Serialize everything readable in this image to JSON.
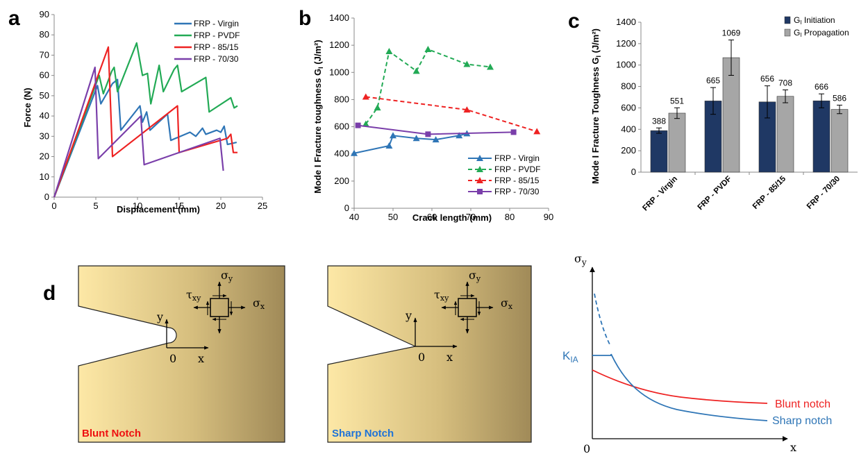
{
  "panel_letters": [
    "a",
    "b",
    "c",
    "d"
  ],
  "chart_data": [
    {
      "type": "line",
      "panel": "a",
      "xlabel": "Displacement (mm)",
      "ylabel": "Force (N)",
      "xlim": [
        0,
        25
      ],
      "ylim": [
        0,
        90
      ],
      "xticks": [
        "0",
        "5",
        "10",
        "15",
        "20",
        "25"
      ],
      "yticks": [
        "0",
        "10",
        "20",
        "30",
        "40",
        "50",
        "60",
        "70",
        "80",
        "90"
      ],
      "legend_position": "top-right",
      "series": [
        {
          "name": "FRP - Virgin",
          "color": "#2E75B6",
          "points": [
            [
              0,
              0
            ],
            [
              5.2,
              55
            ],
            [
              5.6,
              46
            ],
            [
              7,
              56
            ],
            [
              7.6,
              58
            ],
            [
              8,
              33
            ],
            [
              10.3,
              45
            ],
            [
              10.6,
              37
            ],
            [
              11.1,
              42
            ],
            [
              11.5,
              33
            ],
            [
              13.6,
              41
            ],
            [
              14,
              28
            ],
            [
              16.3,
              32
            ],
            [
              17,
              30
            ],
            [
              17.8,
              34
            ],
            [
              18.2,
              31
            ],
            [
              19.5,
              33
            ],
            [
              20,
              32
            ],
            [
              20.4,
              35
            ],
            [
              20.8,
              26
            ],
            [
              21.9,
              27
            ]
          ]
        },
        {
          "name": "FRP - PVDF",
          "color": "#22AA55",
          "points": [
            [
              0,
              0
            ],
            [
              5.4,
              60
            ],
            [
              5.9,
              51
            ],
            [
              6.9,
              62
            ],
            [
              7.2,
              64
            ],
            [
              7.6,
              52
            ],
            [
              9.9,
              76
            ],
            [
              10.6,
              60
            ],
            [
              11.2,
              61
            ],
            [
              11.6,
              46
            ],
            [
              12.6,
              65
            ],
            [
              13.1,
              52
            ],
            [
              14.4,
              63
            ],
            [
              14.8,
              65
            ],
            [
              15.3,
              52
            ],
            [
              18.2,
              59
            ],
            [
              18.6,
              42
            ],
            [
              21.2,
              49
            ],
            [
              21.6,
              44
            ],
            [
              22,
              45
            ]
          ]
        },
        {
          "name": "FRP - 85/15",
          "color": "#EE2222",
          "points": [
            [
              0,
              0
            ],
            [
              6.5,
              74
            ],
            [
              7,
              20
            ],
            [
              14.8,
              45
            ],
            [
              15,
              22
            ],
            [
              20.8,
              29
            ],
            [
              21.2,
              31
            ],
            [
              21.5,
              22
            ],
            [
              22,
              22
            ]
          ]
        },
        {
          "name": "FRP - 70/30",
          "color": "#7A3FAA",
          "points": [
            [
              0,
              0
            ],
            [
              4.9,
              64
            ],
            [
              5.3,
              19
            ],
            [
              10.4,
              40
            ],
            [
              10.8,
              16
            ],
            [
              19.9,
              29
            ],
            [
              20.3,
              13
            ]
          ]
        }
      ]
    },
    {
      "type": "line",
      "panel": "b",
      "xlabel": "Crack length (mm)",
      "ylabel": "Mode I Fracture toughness GI (J/m²)",
      "ylabel_main": "Mode I Fracture toughness G",
      "ylabel_sub": "I",
      "ylabel_unit": " (J/m²)",
      "xlim": [
        40,
        90
      ],
      "ylim": [
        0,
        1400
      ],
      "xticks": [
        "40",
        "50",
        "60",
        "70",
        "80",
        "90"
      ],
      "yticks": [
        "0",
        "200",
        "400",
        "600",
        "800",
        "1000",
        "1200",
        "1400"
      ],
      "legend_position": "bottom-right",
      "series": [
        {
          "name": "FRP - Virgin",
          "color": "#2E75B6",
          "dash": "",
          "marker": "triangle",
          "points": [
            [
              40,
              405
            ],
            [
              49,
              460
            ],
            [
              50,
              535
            ],
            [
              56,
              515
            ],
            [
              61,
              505
            ],
            [
              67,
              535
            ],
            [
              69,
              550
            ]
          ]
        },
        {
          "name": "FRP - PVDF",
          "color": "#22AA55",
          "dash": "6,4",
          "marker": "triangle",
          "points": [
            [
              43,
              620
            ],
            [
              46,
              740
            ],
            [
              49,
              1155
            ],
            [
              56,
              1010
            ],
            [
              59,
              1170
            ],
            [
              69,
              1060
            ],
            [
              75,
              1040
            ]
          ]
        },
        {
          "name": "FRP - 85/15",
          "color": "#EE2222",
          "dash": "6,4",
          "marker": "triangle",
          "points": [
            [
              43,
              820
            ],
            [
              69,
              725
            ],
            [
              87,
              565
            ]
          ]
        },
        {
          "name": "FRP - 70/30",
          "color": "#7A3FAA",
          "dash": "",
          "marker": "square",
          "points": [
            [
              41,
              610
            ],
            [
              59,
              545
            ],
            [
              81,
              560
            ]
          ]
        }
      ]
    },
    {
      "type": "bar",
      "panel": "c",
      "ylabel": "Mode I Fracture Toughness GI (J/m²)",
      "ylabel_main": "Mode I Fracture Toughness G",
      "ylabel_sub": "I",
      "ylabel_unit": " (J/m²)",
      "ylim": [
        0,
        1400
      ],
      "yticks": [
        "0",
        "200",
        "400",
        "600",
        "800",
        "1000",
        "1200",
        "1400"
      ],
      "categories": [
        "FRP - Virgin",
        "FRP - PVDF",
        "FRP - 85/15",
        "FRP - 70/30"
      ],
      "legend_position": "top-right",
      "series": [
        {
          "legend_main": "G",
          "legend_sub": "I",
          "legend_rest": " Initiation",
          "color": "#1F3864",
          "values": [
            388,
            665,
            656,
            666
          ],
          "labels": [
            "388",
            "665",
            "656",
            "666"
          ],
          "errors": [
            25,
            125,
            150,
            65
          ]
        },
        {
          "legend_main": "G",
          "legend_sub": "I",
          "legend_rest": " Propagation",
          "color": "#A6A6A6",
          "values": [
            551,
            1069,
            708,
            586
          ],
          "labels": [
            "551",
            "1069",
            "708",
            "586"
          ],
          "errors": [
            50,
            165,
            60,
            40
          ]
        }
      ]
    }
  ],
  "panel_d": {
    "blunt_label_word1": "Blunt",
    "blunt_label_word2": "Notch",
    "sharp_label_word1": "Sharp",
    "sharp_label_word2": "Notch",
    "axis_y": "y",
    "axis_x": "x",
    "origin": "0",
    "sigma": "σ",
    "sub_y": "y",
    "sub_x": "x",
    "tau": "τ",
    "sub_xy": "xy",
    "plot_y_label_main": "σ",
    "plot_y_label_sub": "y",
    "plot_x_label": "x",
    "plot_origin": "0",
    "kia_main": "K",
    "kia_sub": "IA",
    "blunt_curve_label": "Blunt notch",
    "sharp_curve_label": "Sharp notch",
    "blunt_color": "#EE2222",
    "sharp_color": "#2E75B6",
    "blunt_text_color": "#EE1111",
    "sharp_text_color": "#1E73D8"
  }
}
